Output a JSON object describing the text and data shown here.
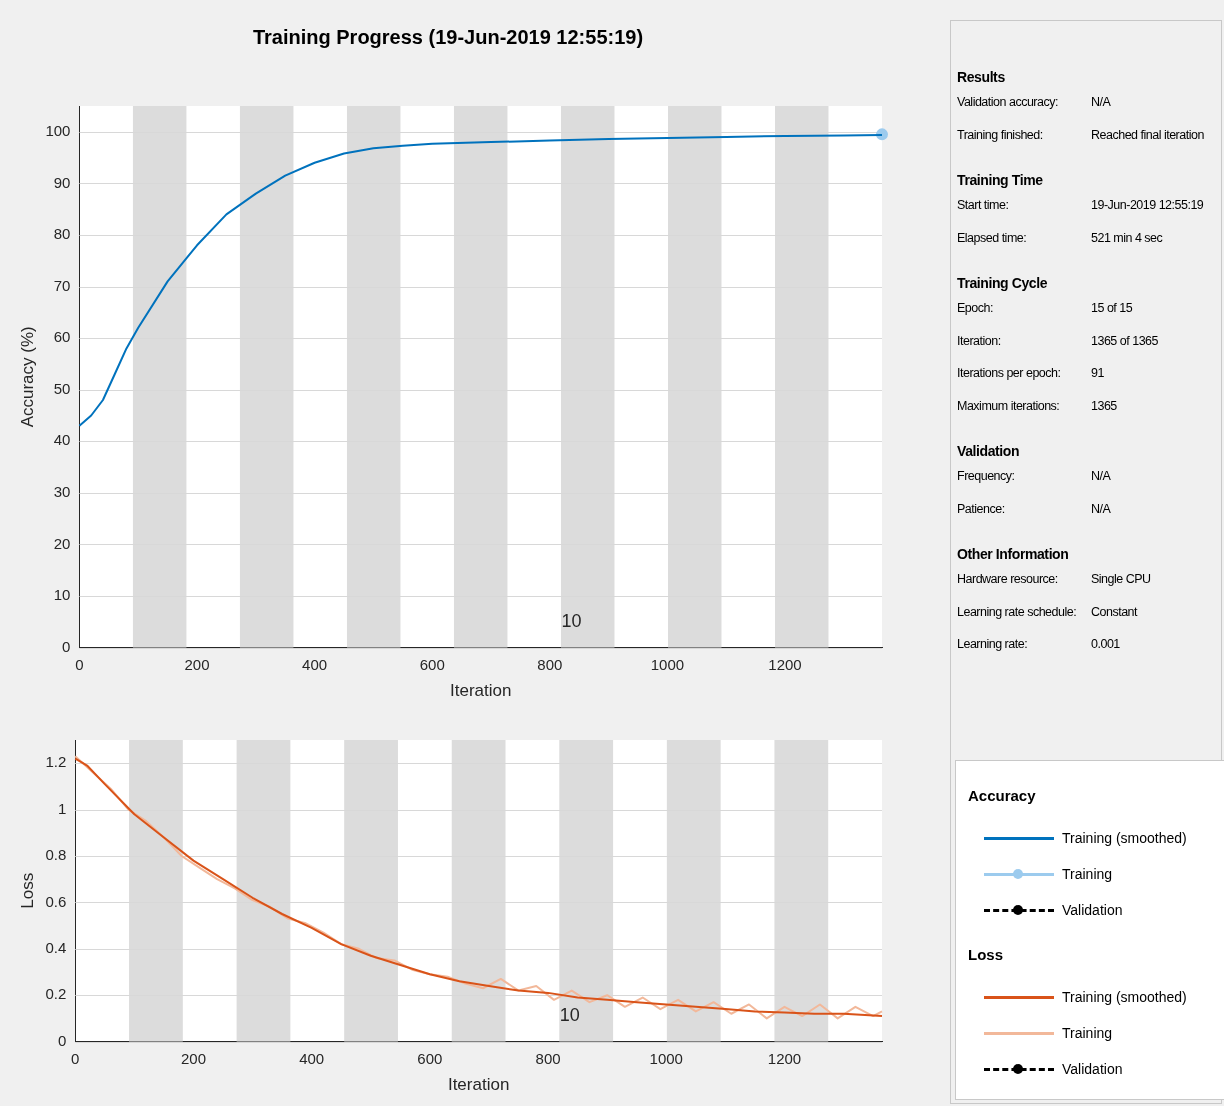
{
  "chart_data": [
    {
      "type": "line",
      "title": "Training Progress (19-Jun-2019 12:55:19)",
      "xlabel": "Iteration",
      "ylabel": "Accuracy (%)",
      "legend_title": "Accuracy",
      "legend": "right",
      "grid": "y",
      "xlim": [
        0,
        1365
      ],
      "xticks": [
        0,
        200,
        400,
        600,
        800,
        1000,
        1200
      ],
      "ylim": [
        0,
        105
      ],
      "yticks": [
        0,
        10,
        20,
        30,
        40,
        50,
        60,
        70,
        80,
        90,
        100
      ],
      "bands": [
        {
          "axis": "x",
          "from": 91,
          "to": 182,
          "color": "#dcdcdc"
        },
        {
          "axis": "x",
          "from": 273,
          "to": 364,
          "color": "#dcdcdc"
        },
        {
          "axis": "x",
          "from": 455,
          "to": 546,
          "color": "#dcdcdc"
        },
        {
          "axis": "x",
          "from": 637,
          "to": 728,
          "color": "#dcdcdc"
        },
        {
          "axis": "x",
          "from": 819,
          "to": 910,
          "color": "#dcdcdc"
        },
        {
          "axis": "x",
          "from": 1001,
          "to": 1092,
          "color": "#dcdcdc"
        },
        {
          "axis": "x",
          "from": 1183,
          "to": 1274,
          "color": "#dcdcdc"
        }
      ],
      "annotations": [
        "10"
      ],
      "series": [
        {
          "name": "Training (smoothed)",
          "color": "#0072bd",
          "line_style": "solid",
          "marker": "none",
          "x": [
            0,
            20,
            40,
            60,
            80,
            100,
            150,
            200,
            250,
            300,
            350,
            400,
            450,
            500,
            550,
            600,
            700,
            800,
            900,
            1000,
            1100,
            1200,
            1300,
            1365
          ],
          "values": [
            43,
            45,
            48,
            53,
            58,
            62,
            71,
            78,
            84,
            88,
            91.5,
            94,
            95.8,
            96.8,
            97.3,
            97.7,
            98,
            98.3,
            98.6,
            98.8,
            99,
            99.2,
            99.3,
            99.4
          ]
        },
        {
          "name": "Training",
          "color": "#9ccbee",
          "line_style": "solid",
          "marker": "circle",
          "x": [
            1365
          ],
          "values": [
            99.5
          ]
        },
        {
          "name": "Validation",
          "color": "#000000",
          "line_style": "dashed",
          "marker": "circle"
        }
      ]
    },
    {
      "type": "line",
      "xlabel": "Iteration",
      "ylabel": "Loss",
      "legend_title": "Loss",
      "legend": "right",
      "grid": "y",
      "xlim": [
        0,
        1365
      ],
      "xticks": [
        0,
        200,
        400,
        600,
        800,
        1000,
        1200
      ],
      "ylim": [
        0,
        1.3
      ],
      "yticks": [
        0,
        0.2,
        0.4,
        0.6,
        0.8,
        1,
        1.2
      ],
      "bands": [
        {
          "axis": "x",
          "from": 91,
          "to": 182,
          "color": "#dcdcdc"
        },
        {
          "axis": "x",
          "from": 273,
          "to": 364,
          "color": "#dcdcdc"
        },
        {
          "axis": "x",
          "from": 455,
          "to": 546,
          "color": "#dcdcdc"
        },
        {
          "axis": "x",
          "from": 637,
          "to": 728,
          "color": "#dcdcdc"
        },
        {
          "axis": "x",
          "from": 819,
          "to": 910,
          "color": "#dcdcdc"
        },
        {
          "axis": "x",
          "from": 1001,
          "to": 1092,
          "color": "#dcdcdc"
        },
        {
          "axis": "x",
          "from": 1183,
          "to": 1274,
          "color": "#dcdcdc"
        }
      ],
      "annotations": [
        "10"
      ],
      "series": [
        {
          "name": "Training (smoothed)",
          "color": "#d95319",
          "line_style": "solid",
          "marker": "none",
          "x": [
            0,
            20,
            50,
            100,
            150,
            200,
            250,
            300,
            350,
            400,
            450,
            500,
            550,
            600,
            650,
            700,
            750,
            800,
            850,
            900,
            950,
            1000,
            1050,
            1100,
            1150,
            1200,
            1250,
            1300,
            1365
          ],
          "values": [
            1.22,
            1.19,
            1.11,
            0.98,
            0.88,
            0.78,
            0.7,
            0.62,
            0.55,
            0.49,
            0.42,
            0.37,
            0.33,
            0.29,
            0.26,
            0.24,
            0.22,
            0.21,
            0.19,
            0.18,
            0.17,
            0.16,
            0.15,
            0.14,
            0.13,
            0.125,
            0.12,
            0.12,
            0.11
          ]
        },
        {
          "name": "Training",
          "color": "#f2b89a",
          "line_style": "solid",
          "marker": "none",
          "x": [
            0,
            30,
            60,
            90,
            120,
            150,
            180,
            210,
            240,
            270,
            300,
            330,
            360,
            390,
            420,
            450,
            480,
            510,
            540,
            570,
            600,
            630,
            660,
            690,
            720,
            750,
            780,
            810,
            840,
            870,
            900,
            930,
            960,
            990,
            1020,
            1050,
            1080,
            1110,
            1140,
            1170,
            1200,
            1230,
            1260,
            1290,
            1320,
            1350,
            1365
          ],
          "values": [
            1.23,
            1.16,
            1.09,
            1,
            0.95,
            0.88,
            0.8,
            0.75,
            0.7,
            0.66,
            0.61,
            0.58,
            0.53,
            0.51,
            0.47,
            0.42,
            0.4,
            0.36,
            0.35,
            0.31,
            0.29,
            0.28,
            0.25,
            0.23,
            0.27,
            0.22,
            0.24,
            0.18,
            0.22,
            0.17,
            0.2,
            0.15,
            0.19,
            0.14,
            0.18,
            0.13,
            0.17,
            0.12,
            0.16,
            0.1,
            0.15,
            0.11,
            0.16,
            0.1,
            0.15,
            0.11,
            0.13
          ]
        },
        {
          "name": "Validation",
          "color": "#000000",
          "line_style": "dashed",
          "marker": "circle"
        }
      ]
    },
    {
      "type": "other",
      "title": "Results",
      "annotations": [
        "Validation accuracy:",
        "N/A",
        "Training finished:",
        "Reached final iteration"
      ]
    },
    {
      "type": "other",
      "title": "Training Time",
      "annotations": [
        "Start time:",
        "19-Jun-2019 12:55:19",
        "Elapsed time:",
        "521 min 4 sec"
      ]
    },
    {
      "type": "other",
      "title": "Training Cycle",
      "annotations": [
        "Epoch:",
        "15 of 15",
        "Iteration:",
        "1365 of 1365",
        "Iterations per epoch:",
        "91",
        "Maximum iterations:",
        "1365"
      ]
    },
    {
      "type": "other",
      "title": "Validation",
      "annotations": [
        "Frequency:",
        "N/A",
        "Patience:",
        "N/A"
      ]
    },
    {
      "type": "other",
      "title": "Other Information",
      "annotations": [
        "Hardware resource:",
        "Single CPU",
        "Learning rate schedule:",
        "Constant",
        "Learning rate:",
        "0.001"
      ]
    }
  ]
}
